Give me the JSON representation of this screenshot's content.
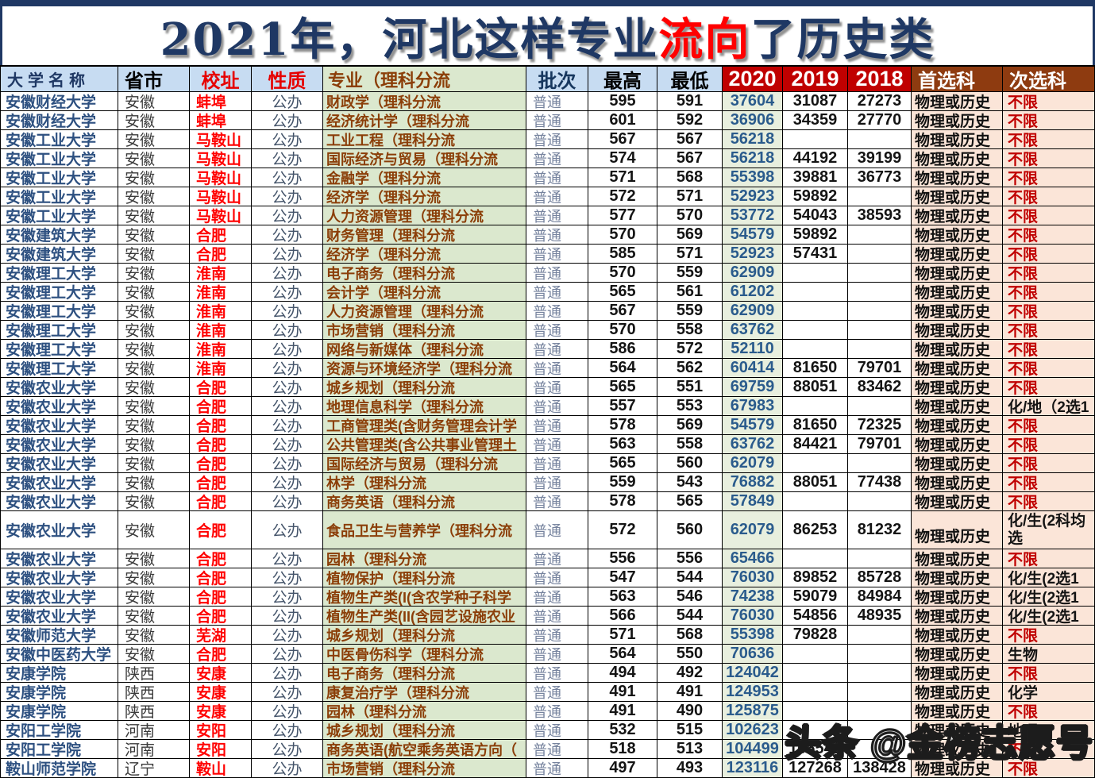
{
  "title": {
    "prefix": "2021年，河北这样专业",
    "highlight": "流向",
    "suffix": "了历史类"
  },
  "watermark": "头条 @金榜志愿号",
  "colors": {
    "title_navy": "#1F3864",
    "title_highlight_red": "#FF0000",
    "header_blue": "#C7DCF2",
    "header_green": "#DBE8CE",
    "header_red": "#C00000",
    "header_brown": "#8E3B10",
    "major_cell_green": "#DBE8CE",
    "y2020_cell_green": "#E8EFDE",
    "subject_cell_peach": "#FBE5D8",
    "city_red": "#FF0000",
    "second_no_limit_red": "#C00000",
    "y2020_text_blue": "#2A5B8C"
  },
  "table": {
    "headers": [
      {
        "label": "大学名称"
      },
      {
        "label": "省市"
      },
      {
        "label": "校址"
      },
      {
        "label": "性质"
      },
      {
        "label": "专业（理科分流"
      },
      {
        "label": "批次"
      },
      {
        "label": "最高"
      },
      {
        "label": "最低"
      },
      {
        "label": "2020"
      },
      {
        "label": "2019"
      },
      {
        "label": "2018"
      },
      {
        "label": "首选科"
      },
      {
        "label": "次选科"
      }
    ],
    "rows": [
      {
        "name": "安徽财经大学",
        "prov": "安徽",
        "city": "蚌埠",
        "nature": "公办",
        "major": "财政学（理科分流",
        "batch": "普通",
        "high": "595",
        "low": "591",
        "y2020": "37604",
        "y2019": "31087",
        "y2018": "27273",
        "first": "物理或历史",
        "second": "不限",
        "second_style": "red",
        "tall": false
      },
      {
        "name": "安徽财经大学",
        "prov": "安徽",
        "city": "蚌埠",
        "nature": "公办",
        "major": "经济统计学（理科分流",
        "batch": "普通",
        "high": "601",
        "low": "592",
        "y2020": "36906",
        "y2019": "34359",
        "y2018": "27770",
        "first": "物理或历史",
        "second": "不限",
        "second_style": "red",
        "tall": false
      },
      {
        "name": "安徽工业大学",
        "prov": "安徽",
        "city": "马鞍山",
        "nature": "公办",
        "major": "工业工程（理科分流",
        "batch": "普通",
        "high": "567",
        "low": "567",
        "y2020": "56218",
        "y2019": "",
        "y2018": "",
        "first": "物理或历史",
        "second": "不限",
        "second_style": "red",
        "tall": false
      },
      {
        "name": "安徽工业大学",
        "prov": "安徽",
        "city": "马鞍山",
        "nature": "公办",
        "major": "国际经济与贸易（理科分流",
        "batch": "普通",
        "high": "574",
        "low": "567",
        "y2020": "56218",
        "y2019": "44192",
        "y2018": "39199",
        "first": "物理或历史",
        "second": "不限",
        "second_style": "red",
        "tall": false
      },
      {
        "name": "安徽工业大学",
        "prov": "安徽",
        "city": "马鞍山",
        "nature": "公办",
        "major": "金融学（理科分流",
        "batch": "普通",
        "high": "571",
        "low": "568",
        "y2020": "55398",
        "y2019": "39881",
        "y2018": "36773",
        "first": "物理或历史",
        "second": "不限",
        "second_style": "red",
        "tall": false
      },
      {
        "name": "安徽工业大学",
        "prov": "安徽",
        "city": "马鞍山",
        "nature": "公办",
        "major": "经济学（理科分流",
        "batch": "普通",
        "high": "572",
        "low": "571",
        "y2020": "52923",
        "y2019": "59892",
        "y2018": "",
        "first": "物理或历史",
        "second": "不限",
        "second_style": "red",
        "tall": false
      },
      {
        "name": "安徽工业大学",
        "prov": "安徽",
        "city": "马鞍山",
        "nature": "公办",
        "major": "人力资源管理（理科分流",
        "batch": "普通",
        "high": "577",
        "low": "570",
        "y2020": "53772",
        "y2019": "54043",
        "y2018": "38593",
        "first": "物理或历史",
        "second": "不限",
        "second_style": "red",
        "tall": false
      },
      {
        "name": "安徽建筑大学",
        "prov": "安徽",
        "city": "合肥",
        "nature": "公办",
        "major": "财务管理（理科分流",
        "batch": "普通",
        "high": "570",
        "low": "569",
        "y2020": "54579",
        "y2019": "59892",
        "y2018": "",
        "first": "物理或历史",
        "second": "不限",
        "second_style": "red",
        "tall": false
      },
      {
        "name": "安徽建筑大学",
        "prov": "安徽",
        "city": "合肥",
        "nature": "公办",
        "major": "经济学（理科分流",
        "batch": "普通",
        "high": "585",
        "low": "571",
        "y2020": "52923",
        "y2019": "57431",
        "y2018": "",
        "first": "物理或历史",
        "second": "不限",
        "second_style": "red",
        "tall": false
      },
      {
        "name": "安徽理工大学",
        "prov": "安徽",
        "city": "淮南",
        "nature": "公办",
        "major": "电子商务（理科分流",
        "batch": "普通",
        "high": "570",
        "low": "559",
        "y2020": "62909",
        "y2019": "",
        "y2018": "",
        "first": "物理或历史",
        "second": "不限",
        "second_style": "red",
        "tall": false
      },
      {
        "name": "安徽理工大学",
        "prov": "安徽",
        "city": "淮南",
        "nature": "公办",
        "major": "会计学（理科分流",
        "batch": "普通",
        "high": "565",
        "low": "561",
        "y2020": "61202",
        "y2019": "",
        "y2018": "",
        "first": "物理或历史",
        "second": "不限",
        "second_style": "red",
        "tall": false
      },
      {
        "name": "安徽理工大学",
        "prov": "安徽",
        "city": "淮南",
        "nature": "公办",
        "major": "人力资源管理（理科分流",
        "batch": "普通",
        "high": "567",
        "low": "559",
        "y2020": "62909",
        "y2019": "",
        "y2018": "",
        "first": "物理或历史",
        "second": "不限",
        "second_style": "red",
        "tall": false
      },
      {
        "name": "安徽理工大学",
        "prov": "安徽",
        "city": "淮南",
        "nature": "公办",
        "major": "市场营销（理科分流",
        "batch": "普通",
        "high": "570",
        "low": "558",
        "y2020": "63762",
        "y2019": "",
        "y2018": "",
        "first": "物理或历史",
        "second": "不限",
        "second_style": "red",
        "tall": false
      },
      {
        "name": "安徽理工大学",
        "prov": "安徽",
        "city": "淮南",
        "nature": "公办",
        "major": "网络与新媒体（理科分流",
        "batch": "普通",
        "high": "586",
        "low": "572",
        "y2020": "52110",
        "y2019": "",
        "y2018": "",
        "first": "物理或历史",
        "second": "不限",
        "second_style": "red",
        "tall": false
      },
      {
        "name": "安徽理工大学",
        "prov": "安徽",
        "city": "淮南",
        "nature": "公办",
        "major": "资源与环境经济学（理科分流",
        "batch": "普通",
        "high": "564",
        "low": "562",
        "y2020": "60414",
        "y2019": "81650",
        "y2018": "79701",
        "first": "物理或历史",
        "second": "不限",
        "second_style": "red",
        "tall": false
      },
      {
        "name": "安徽农业大学",
        "prov": "安徽",
        "city": "合肥",
        "nature": "公办",
        "major": "城乡规划（理科分流",
        "batch": "普通",
        "high": "565",
        "low": "551",
        "y2020": "69759",
        "y2019": "88051",
        "y2018": "83462",
        "first": "物理或历史",
        "second": "不限",
        "second_style": "red",
        "tall": false
      },
      {
        "name": "安徽农业大学",
        "prov": "安徽",
        "city": "合肥",
        "nature": "公办",
        "major": "地理信息科学（理科分流",
        "batch": "普通",
        "high": "557",
        "low": "553",
        "y2020": "67983",
        "y2019": "",
        "y2018": "",
        "first": "物理或历史",
        "second": "化/地（2选1",
        "second_style": "black",
        "tall": false
      },
      {
        "name": "安徽农业大学",
        "prov": "安徽",
        "city": "合肥",
        "nature": "公办",
        "major": "工商管理类(含财务管理会计学",
        "batch": "普通",
        "high": "578",
        "low": "569",
        "y2020": "54579",
        "y2019": "81650",
        "y2018": "72325",
        "first": "物理或历史",
        "second": "不限",
        "second_style": "red",
        "tall": false
      },
      {
        "name": "安徽农业大学",
        "prov": "安徽",
        "city": "合肥",
        "nature": "公办",
        "major": "公共管理类(含公共事业管理土",
        "batch": "普通",
        "high": "563",
        "low": "558",
        "y2020": "63762",
        "y2019": "84421",
        "y2018": "79701",
        "first": "物理或历史",
        "second": "不限",
        "second_style": "red",
        "tall": false
      },
      {
        "name": "安徽农业大学",
        "prov": "安徽",
        "city": "合肥",
        "nature": "公办",
        "major": "国际经济与贸易（理科分流",
        "batch": "普通",
        "high": "565",
        "low": "560",
        "y2020": "62079",
        "y2019": "",
        "y2018": "",
        "first": "物理或历史",
        "second": "不限",
        "second_style": "red",
        "tall": false
      },
      {
        "name": "安徽农业大学",
        "prov": "安徽",
        "city": "合肥",
        "nature": "公办",
        "major": "林学（理科分流",
        "batch": "普通",
        "high": "559",
        "low": "543",
        "y2020": "76882",
        "y2019": "88051",
        "y2018": "77438",
        "first": "物理或历史",
        "second": "不限",
        "second_style": "red",
        "tall": false
      },
      {
        "name": "安徽农业大学",
        "prov": "安徽",
        "city": "合肥",
        "nature": "公办",
        "major": "商务英语（理科分流",
        "batch": "普通",
        "high": "578",
        "low": "565",
        "y2020": "57849",
        "y2019": "",
        "y2018": "",
        "first": "物理或历史",
        "second": "不限",
        "second_style": "red",
        "tall": false
      },
      {
        "name": "安徽农业大学",
        "prov": "安徽",
        "city": "合肥",
        "nature": "公办",
        "major": "食品卫生与营养学（理科分流",
        "batch": "普通",
        "high": "572",
        "low": "560",
        "y2020": "62079",
        "y2019": "86253",
        "y2018": "81232",
        "first": "物理或历史",
        "second": "化/生(2科均选",
        "second_style": "black",
        "tall": true
      },
      {
        "name": "安徽农业大学",
        "prov": "安徽",
        "city": "合肥",
        "nature": "公办",
        "major": "园林（理科分流",
        "batch": "普通",
        "high": "556",
        "low": "556",
        "y2020": "65466",
        "y2019": "",
        "y2018": "",
        "first": "物理或历史",
        "second": "不限",
        "second_style": "red",
        "tall": false
      },
      {
        "name": "安徽农业大学",
        "prov": "安徽",
        "city": "合肥",
        "nature": "公办",
        "major": "植物保护（理科分流",
        "batch": "普通",
        "high": "547",
        "low": "544",
        "y2020": "76030",
        "y2019": "89852",
        "y2018": "85728",
        "first": "物理或历史",
        "second": "化/生(2选1",
        "second_style": "black",
        "tall": false
      },
      {
        "name": "安徽农业大学",
        "prov": "安徽",
        "city": "合肥",
        "nature": "公办",
        "major": "植物生产类(I(含农学种子科学",
        "batch": "普通",
        "high": "563",
        "low": "546",
        "y2020": "74238",
        "y2019": "59079",
        "y2018": "84984",
        "first": "物理或历史",
        "second": "化/生(2选1",
        "second_style": "black",
        "tall": false
      },
      {
        "name": "安徽农业大学",
        "prov": "安徽",
        "city": "合肥",
        "nature": "公办",
        "major": "植物生产类(II(含园艺设施农业",
        "batch": "普通",
        "high": "566",
        "low": "544",
        "y2020": "76030",
        "y2019": "54856",
        "y2018": "48935",
        "first": "物理或历史",
        "second": "化/生(2选1",
        "second_style": "black",
        "tall": false
      },
      {
        "name": "安徽师范大学",
        "prov": "安徽",
        "city": "芜湖",
        "nature": "公办",
        "major": "城乡规划（理科分流",
        "batch": "普通",
        "high": "571",
        "low": "568",
        "y2020": "55398",
        "y2019": "79828",
        "y2018": "",
        "first": "物理或历史",
        "second": "不限",
        "second_style": "red",
        "tall": false
      },
      {
        "name": "安徽中医药大学",
        "prov": "安徽",
        "city": "合肥",
        "nature": "公办",
        "major": "中医骨伤科学（理科分流",
        "batch": "普通",
        "high": "564",
        "low": "550",
        "y2020": "70636",
        "y2019": "",
        "y2018": "",
        "first": "物理或历史",
        "second": "生物",
        "second_style": "black",
        "tall": false
      },
      {
        "name": "安康学院",
        "prov": "陕西",
        "city": "安康",
        "nature": "公办",
        "major": "电子商务（理科分流",
        "batch": "普通",
        "high": "494",
        "low": "492",
        "y2020": "124042",
        "y2019": "",
        "y2018": "",
        "first": "物理或历史",
        "second": "不限",
        "second_style": "red",
        "tall": false
      },
      {
        "name": "安康学院",
        "prov": "陕西",
        "city": "安康",
        "nature": "公办",
        "major": "康复治疗学（理科分流",
        "batch": "普通",
        "high": "491",
        "low": "491",
        "y2020": "124953",
        "y2019": "",
        "y2018": "",
        "first": "物理或历史",
        "second": "化学",
        "second_style": "black",
        "tall": false
      },
      {
        "name": "安康学院",
        "prov": "陕西",
        "city": "安康",
        "nature": "公办",
        "major": "园林（理科分流",
        "batch": "普通",
        "high": "491",
        "low": "490",
        "y2020": "125875",
        "y2019": "",
        "y2018": "",
        "first": "物理或历史",
        "second": "不限",
        "second_style": "red",
        "tall": false
      },
      {
        "name": "安阳工学院",
        "prov": "河南",
        "city": "安阳",
        "nature": "公办",
        "major": "城乡规划（理科分流",
        "batch": "普通",
        "high": "532",
        "low": "515",
        "y2020": "102623",
        "y2019": "",
        "y2018": "",
        "first": "物理或历史",
        "second": "地理",
        "second_style": "black",
        "tall": false
      },
      {
        "name": "安阳工学院",
        "prov": "河南",
        "city": "安阳",
        "nature": "公办",
        "major": "商务英语(航空乘务英语方向（",
        "batch": "普通",
        "high": "518",
        "low": "513",
        "y2020": "104499",
        "y2019": "106541",
        "y2018": "",
        "first": "物理或历史",
        "second": "不限",
        "second_style": "red",
        "tall": false
      },
      {
        "name": "鞍山师范学院",
        "prov": "辽宁",
        "city": "鞍山",
        "nature": "公办",
        "major": "市场营销（理科分流",
        "batch": "普通",
        "high": "497",
        "low": "493",
        "y2020": "123116",
        "y2019": "127268",
        "y2018": "138428",
        "first": "物理或历史",
        "second": "不限",
        "second_style": "red",
        "tall": false
      }
    ]
  }
}
